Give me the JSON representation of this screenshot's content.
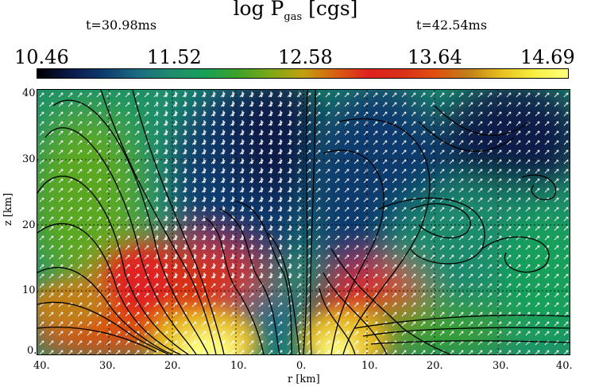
{
  "title": {
    "main": "log P",
    "sub": "gas",
    "unit": "[cgs]"
  },
  "panels": [
    {
      "time_label": "t=30.98ms"
    },
    {
      "time_label": "t=42.54ms"
    }
  ],
  "colorbar": {
    "ticks": [
      "10.46",
      "11.52",
      "12.58",
      "13.64",
      "14.69"
    ],
    "colors": [
      "#000000",
      "#0a1a4a",
      "#0d3b6e",
      "#1b6a82",
      "#1f8b6e",
      "#17a05a",
      "#3aa22a",
      "#7aa818",
      "#c0a010",
      "#d86010",
      "#e02020",
      "#d83018",
      "#e05010",
      "#c08018",
      "#e8c020",
      "#f8f040",
      "#ffff80"
    ]
  },
  "axes": {
    "xlabel": "r [km]",
    "ylabel": "z [km]",
    "yticks": [
      "40.",
      "30.",
      "20.",
      "10.",
      "0."
    ],
    "xticks": [
      "40.",
      "30.",
      "20.",
      "10.",
      "0.",
      "10.",
      "20.",
      "30.",
      "40."
    ]
  }
}
